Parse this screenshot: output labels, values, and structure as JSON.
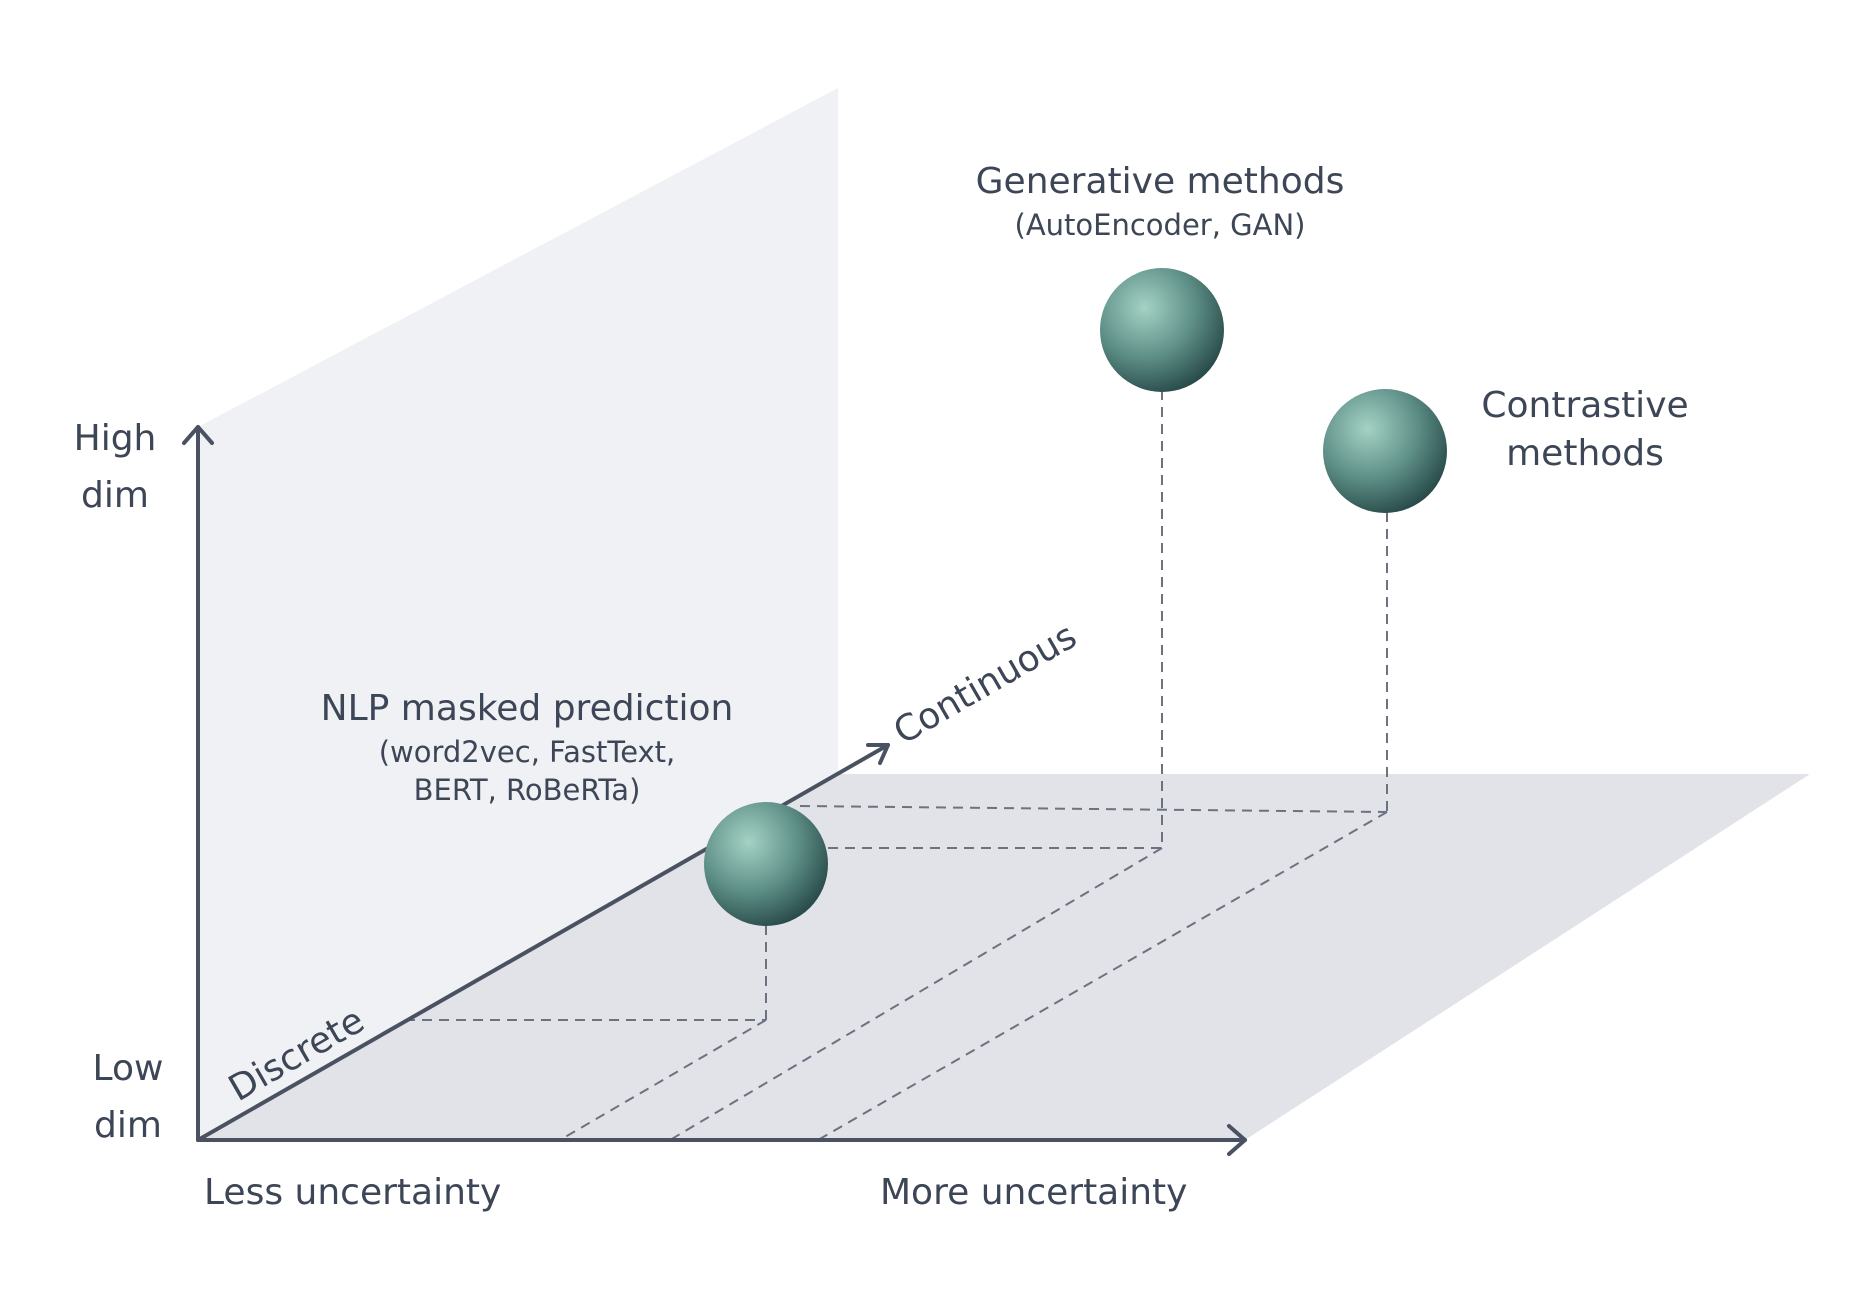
{
  "axes": {
    "vertical": {
      "high": [
        "High",
        "dim"
      ],
      "low": [
        "Low",
        "dim"
      ]
    },
    "horizontal": {
      "left": "Less uncertainty",
      "right": "More uncertainty"
    },
    "depth": {
      "near": "Discrete",
      "far": "Continuous"
    }
  },
  "points": [
    {
      "id": "nlp",
      "title": "NLP masked prediction",
      "details": [
        "(word2vec, FastText,",
        "BERT, RoBeRTa)"
      ]
    },
    {
      "id": "generative",
      "title": "Generative methods",
      "details": [
        "(AutoEncoder, GAN)"
      ]
    },
    {
      "id": "contrastive",
      "title": [
        "Contrastive",
        "methods"
      ],
      "details": []
    }
  ],
  "colors": {
    "axis": "#4a5262",
    "label": "#3d4656",
    "back_plane": "#f0f1f5",
    "floor_plane": "#e1e3e8",
    "sphere_light": "#9ccbbd",
    "sphere_dark": "#284e4c"
  },
  "icons": {
    "arrowhead": "arrow-head"
  }
}
